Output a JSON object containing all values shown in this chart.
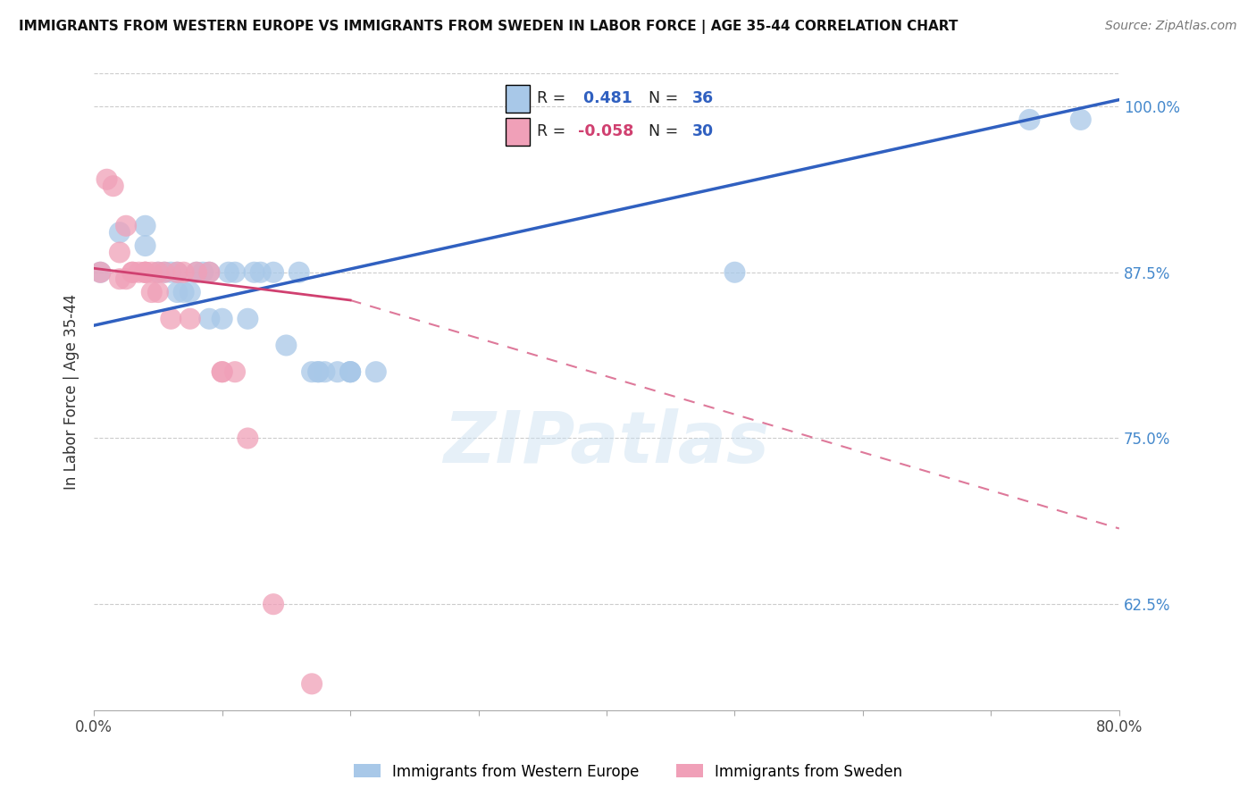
{
  "title": "IMMIGRANTS FROM WESTERN EUROPE VS IMMIGRANTS FROM SWEDEN IN LABOR FORCE | AGE 35-44 CORRELATION CHART",
  "source": "Source: ZipAtlas.com",
  "ylabel": "In Labor Force | Age 35-44",
  "xlabel": "",
  "xlim": [
    0.0,
    0.8
  ],
  "ylim": [
    0.545,
    1.025
  ],
  "yticks": [
    0.625,
    0.75,
    0.875,
    1.0
  ],
  "ytick_labels": [
    "62.5%",
    "75.0%",
    "87.5%",
    "100.0%"
  ],
  "blue_r": 0.481,
  "blue_n": 36,
  "pink_r": -0.058,
  "pink_n": 30,
  "blue_color": "#a8c8e8",
  "pink_color": "#f0a0b8",
  "blue_line_color": "#3060c0",
  "pink_line_color": "#d04070",
  "watermark": "ZIPatlas",
  "legend_blue": "Immigrants from Western Europe",
  "legend_pink": "Immigrants from Sweden",
  "blue_x": [
    0.005,
    0.02,
    0.04,
    0.04,
    0.05,
    0.055,
    0.06,
    0.065,
    0.065,
    0.07,
    0.075,
    0.08,
    0.085,
    0.09,
    0.09,
    0.1,
    0.105,
    0.11,
    0.12,
    0.125,
    0.13,
    0.14,
    0.15,
    0.16,
    0.17,
    0.175,
    0.175,
    0.18,
    0.19,
    0.2,
    0.2,
    0.2,
    0.22,
    0.5,
    0.73,
    0.77
  ],
  "blue_y": [
    0.875,
    0.905,
    0.91,
    0.895,
    0.875,
    0.875,
    0.875,
    0.875,
    0.86,
    0.86,
    0.86,
    0.875,
    0.875,
    0.84,
    0.875,
    0.84,
    0.875,
    0.875,
    0.84,
    0.875,
    0.875,
    0.875,
    0.82,
    0.875,
    0.8,
    0.8,
    0.8,
    0.8,
    0.8,
    0.8,
    0.8,
    0.8,
    0.8,
    0.875,
    0.99,
    0.99
  ],
  "pink_x": [
    0.005,
    0.01,
    0.015,
    0.02,
    0.02,
    0.025,
    0.025,
    0.03,
    0.03,
    0.035,
    0.04,
    0.04,
    0.04,
    0.045,
    0.045,
    0.05,
    0.05,
    0.055,
    0.06,
    0.065,
    0.07,
    0.075,
    0.08,
    0.09,
    0.1,
    0.1,
    0.11,
    0.12,
    0.14,
    0.17
  ],
  "pink_y": [
    0.875,
    0.945,
    0.94,
    0.89,
    0.87,
    0.91,
    0.87,
    0.875,
    0.875,
    0.875,
    0.875,
    0.875,
    0.875,
    0.875,
    0.86,
    0.875,
    0.86,
    0.875,
    0.84,
    0.875,
    0.875,
    0.84,
    0.875,
    0.875,
    0.8,
    0.8,
    0.8,
    0.75,
    0.625,
    0.565
  ]
}
